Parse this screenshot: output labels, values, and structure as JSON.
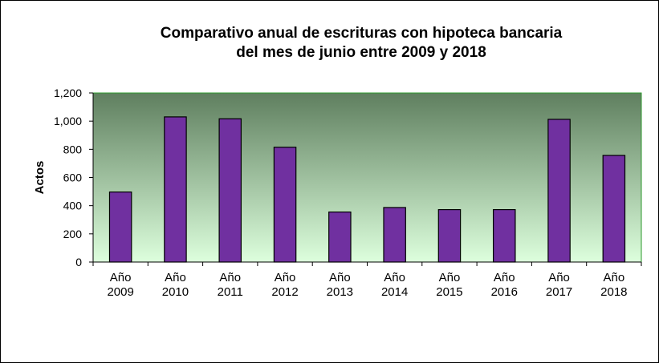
{
  "chart_data": {
    "type": "bar",
    "title_lines": [
      "Comparativo anual de escrituras con hipoteca bancaria",
      "del mes de junio entre 2009 y 2018"
    ],
    "ylabel": "Actos",
    "xlabel": "",
    "ylim": [
      0,
      1200
    ],
    "yticks": [
      0,
      200,
      400,
      600,
      800,
      1000,
      1200
    ],
    "ytick_labels": [
      "0",
      "200",
      "400",
      "600",
      "800",
      "1,000",
      "1,200"
    ],
    "categories": [
      [
        "Año",
        "2009"
      ],
      [
        "Año",
        "2010"
      ],
      [
        "Año",
        "2011"
      ],
      [
        "Año",
        "2012"
      ],
      [
        "Año",
        "2013"
      ],
      [
        "Año",
        "2014"
      ],
      [
        "Año",
        "2015"
      ],
      [
        "Año",
        "2016"
      ],
      [
        "Año",
        "2017"
      ],
      [
        "Año",
        "2018"
      ]
    ],
    "values": [
      497,
      1030,
      1017,
      815,
      355,
      387,
      372,
      372,
      1013,
      757
    ],
    "bar_color": "#7030a0",
    "plot_gradient": [
      "#5f7f5f",
      "#ddffdd"
    ],
    "plot_border_color": "#2e9a2e",
    "grid": false,
    "legend": "none"
  }
}
